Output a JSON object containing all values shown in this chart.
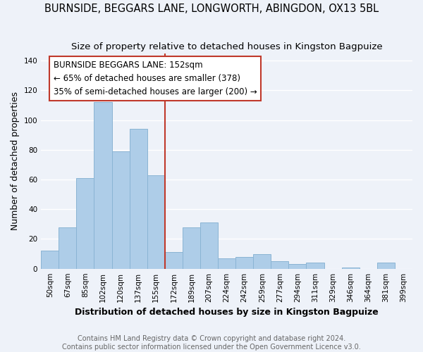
{
  "title": "BURNSIDE, BEGGARS LANE, LONGWORTH, ABINGDON, OX13 5BL",
  "subtitle": "Size of property relative to detached houses in Kingston Bagpuize",
  "xlabel": "Distribution of detached houses by size in Kingston Bagpuize",
  "ylabel": "Number of detached properties",
  "footnote1": "Contains HM Land Registry data © Crown copyright and database right 2024.",
  "footnote2": "Contains public sector information licensed under the Open Government Licence v3.0.",
  "categories": [
    "50sqm",
    "67sqm",
    "85sqm",
    "102sqm",
    "120sqm",
    "137sqm",
    "155sqm",
    "172sqm",
    "189sqm",
    "207sqm",
    "224sqm",
    "242sqm",
    "259sqm",
    "277sqm",
    "294sqm",
    "311sqm",
    "329sqm",
    "346sqm",
    "364sqm",
    "381sqm",
    "399sqm"
  ],
  "values": [
    12,
    28,
    61,
    112,
    79,
    94,
    63,
    11,
    28,
    31,
    7,
    8,
    10,
    5,
    3,
    4,
    0,
    1,
    0,
    4,
    0
  ],
  "bar_color": "#aecde8",
  "bar_edge_color": "#8ab4d4",
  "vline_color": "#c0392b",
  "vline_pos": 6,
  "annotation_line1": "BURNSIDE BEGGARS LANE: 152sqm",
  "annotation_line2": "← 65% of detached houses are smaller (378)",
  "annotation_line3": "35% of semi-detached houses are larger (200) →",
  "ylim": [
    0,
    145
  ],
  "yticks": [
    0,
    20,
    40,
    60,
    80,
    100,
    120,
    140
  ],
  "background_color": "#eef2f9",
  "grid_color": "#ffffff",
  "title_fontsize": 10.5,
  "subtitle_fontsize": 9.5,
  "label_fontsize": 9,
  "tick_fontsize": 7.5,
  "annotation_fontsize": 8.5,
  "footnote_fontsize": 7
}
